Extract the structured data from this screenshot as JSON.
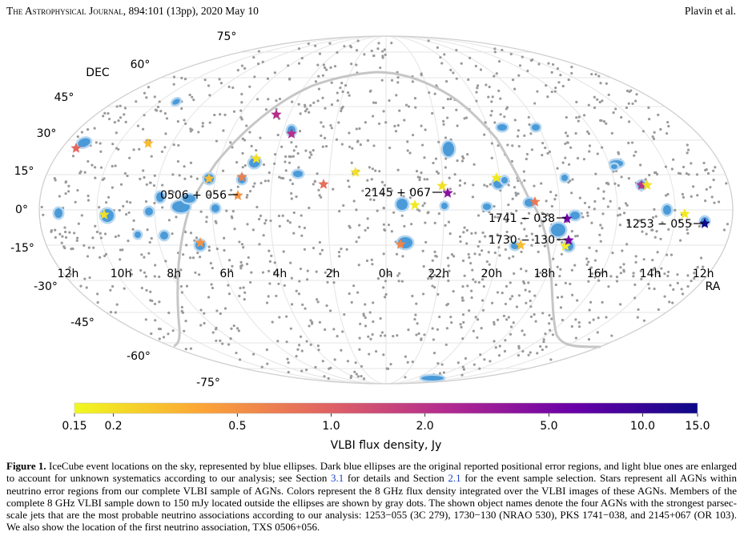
{
  "header": {
    "journal": "The Astrophysical Journal",
    "citation": ", 894:101 (13pp), 2020 May 10",
    "authors": "Plavin et al."
  },
  "figure": {
    "dec_axis_label": "DEC",
    "ra_axis_label": "RA",
    "dec_ticks": [
      "75°",
      "60°",
      "45°",
      "30°",
      "15°",
      "0°",
      "-15°",
      "-30°",
      "-45°",
      "-60°",
      "-75°"
    ],
    "ra_ticks": [
      "12h",
      "10h",
      "8h",
      "6h",
      "4h",
      "2h",
      "0h",
      "22h",
      "20h",
      "18h",
      "16h",
      "14h",
      "12h"
    ],
    "labeled_sources": [
      {
        "name": "0506 + 056",
        "flux_jy": 0.5
      },
      {
        "name": "2145 + 067",
        "flux_jy": 4.0
      },
      {
        "name": "1741 − 038",
        "flux_jy": 5.5
      },
      {
        "name": "1730 − 130",
        "flux_jy": 5.0
      },
      {
        "name": "1253 − 055",
        "flux_jy": 15.0
      }
    ],
    "colorbar": {
      "label": "VLBI flux density, Jy",
      "scale": "log",
      "range": [
        0.15,
        15.0
      ],
      "ticks": [
        {
          "v": 0.15,
          "t": "0.15"
        },
        {
          "v": 0.2,
          "t": "0.2"
        },
        {
          "v": 0.5,
          "t": "0.5"
        },
        {
          "v": 1.0,
          "t": "1.0"
        },
        {
          "v": 2.0,
          "t": "2.0"
        },
        {
          "v": 5.0,
          "t": "5.0"
        },
        {
          "v": 10.0,
          "t": "10.0"
        },
        {
          "v": 15.0,
          "t": "15.0"
        }
      ],
      "colors": [
        "#f0f921",
        "#fca636",
        "#e16462",
        "#b12a90",
        "#6a00a8",
        "#0d0887"
      ]
    },
    "colors": {
      "ellipse_light": "#b5d6f0",
      "ellipse_dark": "#4a9ad8",
      "dot": "#9a9a9a",
      "grid": "#e4e4e4",
      "galactic_plane": "#c6c6c6"
    }
  },
  "caption": {
    "label": "Figure 1.",
    "p1": " IceCube event locations on the sky, represented by blue ellipses. Dark blue ellipses are the original reported positional error regions, and light blue ones are enlarged to account for unknown systematics according to our analysis; see Section ",
    "ref1": "3.1",
    "p2": " for details and Section ",
    "ref2": "2.1",
    "p3": " for the event sample selection. Stars represent all AGNs within neutrino error regions from our complete VLBI sample of AGNs. Colors represent the 8 GHz flux density integrated over the VLBI images of these AGNs. Members of the complete 8 GHz VLBI sample down to 150 mJy located outside the ellipses are shown by gray dots. The shown object names denote the four AGNs with the strongest parsec-scale jets that are the most probable neutrino associations according to our analysis: 1253−055 (3C 279), 1730−130 (NRAO 530), PKS 1741−038, and 2145+067 (OR 103). We also show the location of the first neutrino association, TXS 0506+056."
  }
}
